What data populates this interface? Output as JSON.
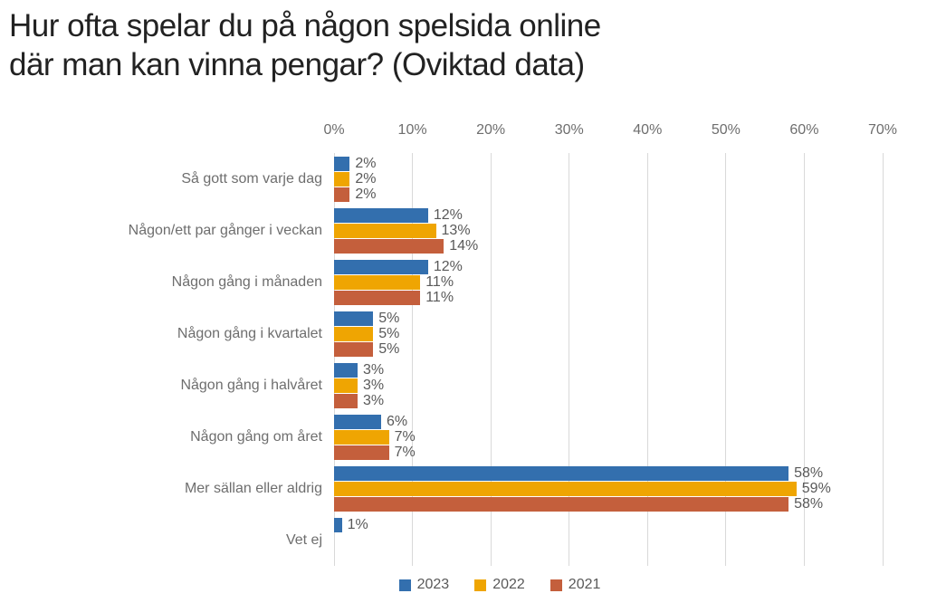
{
  "title": "Hur ofta spelar du på någon spelsida online\ndär man kan vinna pengar? (Oviktad data)",
  "chart_data": {
    "type": "bar",
    "orientation": "horizontal",
    "title": "Hur ofta spelar du på någon spelsida online där man kan vinna pengar? (Oviktad data)",
    "categories": [
      "Så gott som varje dag",
      "Någon/ett par gånger i veckan",
      "Någon gång i månaden",
      "Någon gång i kvartalet",
      "Någon gång i halvåret",
      "Någon gång om året",
      "Mer sällan eller aldrig",
      "Vet ej"
    ],
    "series": [
      {
        "name": "2023",
        "color": "#336FAE",
        "values": [
          2,
          12,
          12,
          5,
          3,
          6,
          58,
          1
        ]
      },
      {
        "name": "2022",
        "color": "#EFA502",
        "values": [
          2,
          13,
          11,
          5,
          3,
          7,
          59,
          null
        ]
      },
      {
        "name": "2021",
        "color": "#C45F3C",
        "values": [
          2,
          14,
          11,
          5,
          3,
          7,
          58,
          null
        ]
      }
    ],
    "x_ticks": [
      "0%",
      "10%",
      "20%",
      "30%",
      "40%",
      "50%",
      "60%",
      "70%"
    ],
    "xlim": [
      0,
      70
    ],
    "grid": true,
    "value_labels": true,
    "value_suffix": "%",
    "legend_position": "bottom"
  },
  "colors": {
    "title_text": "#222222",
    "axis_text": "#6E6E6E",
    "value_text": "#595959",
    "gridline": "#D9D9D9",
    "background": "#FFFFFF"
  }
}
